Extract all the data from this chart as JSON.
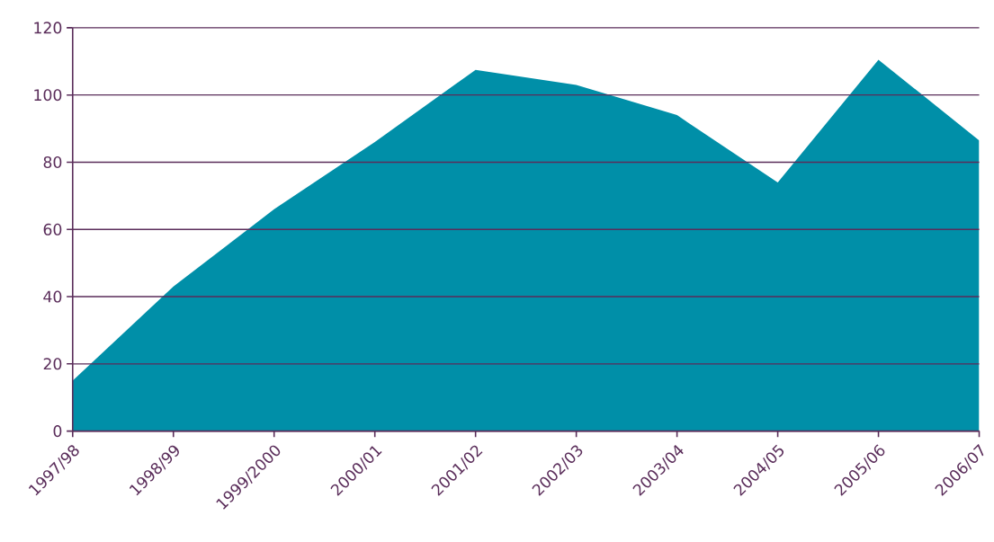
{
  "chart_data": {
    "type": "area",
    "categories": [
      "1997/98",
      "1998/99",
      "1999/2000",
      "2000/01",
      "2001/02",
      "2002/03",
      "2003/04",
      "2004/05",
      "2005/06",
      "2006/07"
    ],
    "values": [
      15,
      43,
      66,
      86,
      107.5,
      103,
      94,
      74,
      110.5,
      86.5
    ],
    "color": "#008fa8",
    "ylim": [
      0,
      120
    ],
    "yticks": [
      0,
      20,
      40,
      60,
      80,
      100,
      120
    ],
    "grid": "y"
  }
}
